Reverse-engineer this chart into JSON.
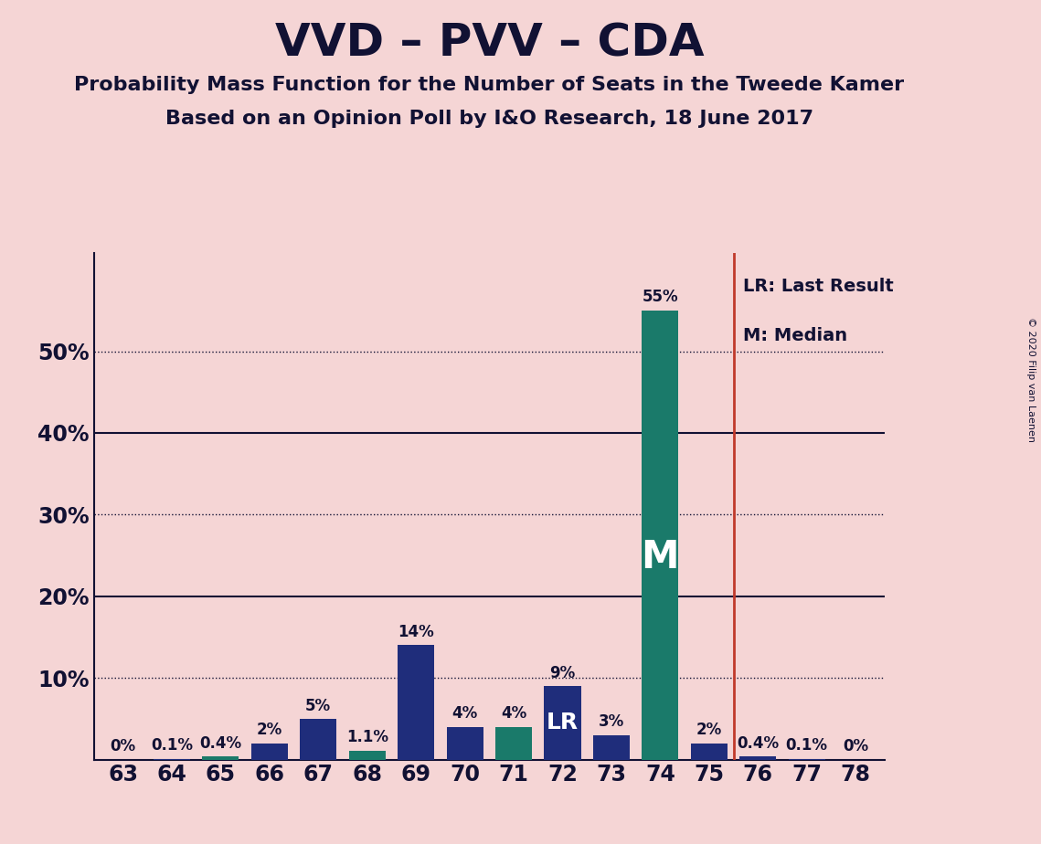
{
  "title": "VVD – PVV – CDA",
  "subtitle1": "Probability Mass Function for the Number of Seats in the Tweede Kamer",
  "subtitle2": "Based on an Opinion Poll by I&O Research, 18 June 2017",
  "copyright": "© 2020 Filip van Laenen",
  "categories": [
    63,
    64,
    65,
    66,
    67,
    68,
    69,
    70,
    71,
    72,
    73,
    74,
    75,
    76,
    77,
    78
  ],
  "values": [
    0.0,
    0.1,
    0.4,
    2.0,
    5.0,
    1.1,
    14.0,
    4.0,
    4.0,
    9.0,
    3.0,
    55.0,
    2.0,
    0.4,
    0.1,
    0.0
  ],
  "labels": [
    "0%",
    "0.1%",
    "0.4%",
    "2%",
    "5%",
    "1.1%",
    "14%",
    "4%",
    "4%",
    "9%",
    "3%",
    "55%",
    "2%",
    "0.4%",
    "0.1%",
    "0%"
  ],
  "bar_colors": [
    "#1f2d7b",
    "#1f2d7b",
    "#1a7a6a",
    "#1f2d7b",
    "#1f2d7b",
    "#1a7a6a",
    "#1f2d7b",
    "#1f2d7b",
    "#1a7a6a",
    "#1f2d7b",
    "#1f2d7b",
    "#1a7a6a",
    "#1f2d7b",
    "#1f2d7b",
    "#1f2d7b",
    "#1f2d7b"
  ],
  "median_bar_cat": 74,
  "lr_bar_cat": 72,
  "lr_line_between": [
    75,
    76
  ],
  "background_color": "#f5d5d5",
  "title_color": "#111133",
  "ylim": [
    0,
    62
  ],
  "solid_gridlines": [
    20,
    40
  ],
  "dotted_gridlines": [
    10,
    30,
    50
  ],
  "legend_text1": "LR: Last Result",
  "legend_text2": "M: Median",
  "lr_line_color": "#c0392b",
  "ytick_labels": [
    "",
    "10%",
    "20%",
    "30%",
    "40%",
    "50%"
  ],
  "ytick_values": [
    0,
    10,
    20,
    30,
    40,
    50
  ]
}
